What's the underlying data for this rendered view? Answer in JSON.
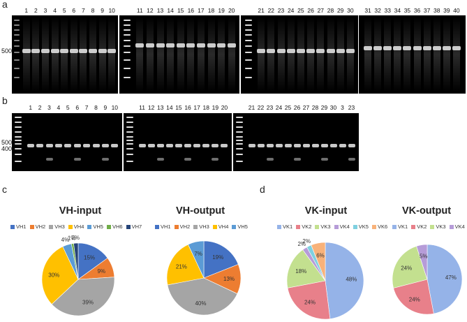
{
  "panels": {
    "a": "a",
    "b": "b",
    "c": "c",
    "d": "d"
  },
  "gel_a": {
    "lane_numbers": [
      [
        "1",
        "2",
        "3",
        "4",
        "5",
        "6",
        "7",
        "8",
        "9",
        "10"
      ],
      [
        "11",
        "12",
        "13",
        "14",
        "15",
        "16",
        "17",
        "18",
        "19",
        "20"
      ],
      [
        "21",
        "22",
        "23",
        "24",
        "25",
        "26",
        "27",
        "28",
        "29",
        "30"
      ],
      [
        "31",
        "32",
        "33",
        "34",
        "35",
        "36",
        "37",
        "38",
        "39",
        "40"
      ]
    ],
    "marker": "500"
  },
  "gel_b": {
    "lane_numbers": [
      [
        "1",
        "2",
        "3",
        "4",
        "5",
        "6",
        "7",
        "8",
        "9",
        "10"
      ],
      [
        "11",
        "12",
        "13",
        "14",
        "15",
        "16",
        "17",
        "18",
        "19",
        "20"
      ],
      [
        "21",
        "22",
        "23",
        "24",
        "25",
        "26",
        "27",
        "28",
        "29",
        "30",
        "3",
        "23"
      ]
    ],
    "marker_upper": "500",
    "marker_lower": "400"
  },
  "chart_data": [
    {
      "type": "pie",
      "title": "VH-input",
      "legend": [
        "VH1",
        "VH2",
        "VH3",
        "VH4",
        "VH5",
        "VH6",
        "VH7"
      ],
      "values": [
        15,
        9,
        39,
        30,
        4,
        1,
        2
      ],
      "labels": [
        "15%",
        "9%",
        "39%",
        "30%",
        "4%",
        "1%",
        "2%"
      ],
      "colors": [
        "#4472C4",
        "#ED7D31",
        "#A5A5A5",
        "#FFC000",
        "#5B9BD5",
        "#70AD47",
        "#264478"
      ]
    },
    {
      "type": "pie",
      "title": "VH-output",
      "legend": [
        "VH1",
        "VH2",
        "VH3",
        "VH4",
        "VH5"
      ],
      "values": [
        19,
        13,
        40,
        21,
        7
      ],
      "labels": [
        "19%",
        "13%",
        "40%",
        "21%",
        "7%"
      ],
      "colors": [
        "#4472C4",
        "#ED7D31",
        "#A5A5A5",
        "#FFC000",
        "#5B9BD5"
      ]
    },
    {
      "type": "pie",
      "title": "VK-input",
      "legend": [
        "VK1",
        "VK2",
        "VK3",
        "VK4",
        "VK5",
        "VK6"
      ],
      "values": [
        48,
        24,
        18,
        2,
        2,
        6
      ],
      "labels": [
        "48%",
        "24%",
        "18%",
        "2%",
        "2%",
        "6%"
      ],
      "colors": [
        "#95B3E8",
        "#E8808A",
        "#C3E08F",
        "#B69CD8",
        "#7FD0E0",
        "#F8B27A"
      ]
    },
    {
      "type": "pie",
      "title": "VK-output",
      "legend": [
        "VK1",
        "VK2",
        "VK3",
        "VK4"
      ],
      "values": [
        47,
        24,
        24,
        5
      ],
      "labels": [
        "47%",
        "24%",
        "24%",
        "5%"
      ],
      "colors": [
        "#95B3E8",
        "#E8808A",
        "#C3E08F",
        "#B69CD8"
      ]
    }
  ]
}
